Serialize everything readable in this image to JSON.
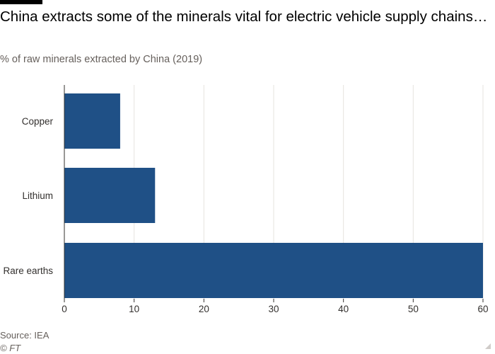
{
  "title": "China extracts some of the minerals vital for electric vehicle supply chains…",
  "subtitle": "% of raw minerals extracted by China (2019)",
  "source": "Source: IEA",
  "credit": "© FT",
  "colors": {
    "bar": "#1f5086",
    "grid": "#e6e3df",
    "axis": "#33302e",
    "text": "#33302e"
  },
  "chart_data": {
    "type": "bar",
    "orientation": "horizontal",
    "title": "China extracts some of the minerals vital for electric vehicle supply chains…",
    "subtitle": "% of raw minerals extracted by China (2019)",
    "categories": [
      "Copper",
      "Lithium",
      "Rare earths"
    ],
    "values": [
      8,
      13,
      60
    ],
    "xlim": [
      0,
      60
    ],
    "xticks": [
      0,
      10,
      20,
      30,
      40,
      50,
      60
    ],
    "xlabel": "",
    "ylabel": "",
    "grid": true,
    "legend": "none"
  }
}
